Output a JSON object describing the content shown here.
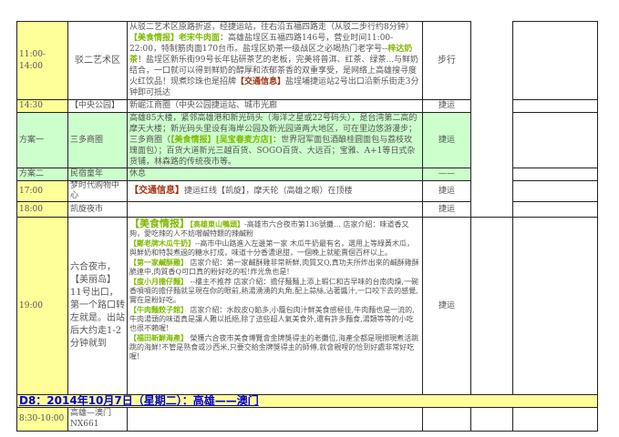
{
  "rows": [
    {
      "time": "11:00-14:00",
      "place": "驳二艺术区",
      "transport": "步行",
      "desc": {
        "t1": "从驳二艺术区原路折返，经捷运站，往右沿五福四路走（从驳二步行约8分钟）",
        "food_tag": "【美食情报】",
        "food_name": "老宋牛肉面",
        "t2": "：高雄盐埕区五福四路146号，营业时间11:00-22:00，特制筋肉面170台币。盐埕区奶茶一级战区之必喝热门老字号--",
        "food_name2": "梓达奶茶",
        "t3": "！盐埕区新乐街99号长年钻研茶艺的老板，完美将普洱、红茶、绿茶...与鲜奶结合，一口就可以得到鲜奶的醇厚和浓郁茶香的双重享受，是网络上高雄搜寻度火红饮品！现煮珍珠也是招牌",
        "traffic_tag": "【交通信息】",
        "t4": "盐埕埔捷运站2号出口沿新乐街走3分钟即可抵达"
      }
    },
    {
      "time": "14:30",
      "place": "【中央公园】",
      "desc": "新崛江商圈（中央公园捷运站、城市光廊",
      "transport": "捷运"
    },
    {
      "time": "方案一",
      "place": "三多商圈",
      "transport": "捷运",
      "desc": {
        "t1": "高雄85大楼，紧邻高雄港和新光码头（海洋之星或22号码头），是台湾第二高的摩天大楼；新光码头里设有海岸公园及新光园道两大地区，可在里边悠游漫步；三多商圈（",
        "food_tag": "【美食情报】",
        "food_name": "[吴宝春麦方店]",
        "t2": "：世界冠军面包酒酿桂圆面包与荔枝玫瑰面包）；百货大道新光三越百货、SOGO百货、大远百；宝雅、A+1等日式杂货铺，林森路的传统夜市等。"
      }
    },
    {
      "time": "方案二",
      "place": "民宿童年",
      "desc": "休息",
      "transport": "——"
    },
    {
      "time": "17:00",
      "place": "梦时代购物中心",
      "traffic_tag": "【交通信息】",
      "desc": "捷运红线【凯旋】，摩天轮（高雄之眼）在顶楼",
      "transport": "捷运"
    },
    {
      "time": "18:00",
      "place": "凯旋夜市",
      "desc": "",
      "transport": "捷运"
    },
    {
      "time": "19:00",
      "place": "六合夜市，【美丽岛】11号出口，第一个路口转左就是。出站后大约走1-2分钟就到",
      "transport": "捷运",
      "food_tag": "【美食情报】",
      "items": [
        {
          "name": "【高雄東山鴨頭】",
          "text": "-高雄市六合夜市第136號攤… 店家介紹：味道香又夠，愛吃辣的人不妨嚐鹹特餵的辣鹹粉"
        },
        {
          "name": "【鄭老牌木瓜牛奶】",
          "text": "--高市中山路進入左邊第一家 木瓜牛奶最有名，選用上等綠黃木瓜，與鮮奶和特製煮過的糖水打成，味道十分香濃退甜，一個晚上就能賣個百杯以上。"
        },
        {
          "name": "【第一家鹹酥雞】",
          "text": " 店家介紹：第一家鹹酥雞非常新鮮,肉質又Q,真功夫所炸出來的鹹酥雞酥脆連中,肉質香Q可口真的粉好吃的啦!炸光魚也是!"
        },
        {
          "name": "【度小月擔仔麵】",
          "text": " --樓主不推荐 店家介紹：擔仔麵麵上添上蝦仁和古早味的台南肉燥,一碗香噴噴的擔仔麵就呈現在你的眼前,熱湯湧湧的丸角,配上蒜絲,沾著醬汁,一口咬下去的感覺,實在是粉好吃。"
        },
        {
          "name": "【牛肉麵餃子館】",
          "text": " 店家介紹：水餃皮Q餡多,小籠包肉汁鮮美食感極佳,牛肉麵也是一流的,牛肉湯頭的味道真是讓人難以抵絕,除了這些超人氣美食外,還有許多麵食,湯類等等的小吃也很不賴喔!"
        },
        {
          "name": "【福田新鮮海產】",
          "text": " 榮獲六合夜市美食博覽會金牌獎得主的老攤位,海產全都是現撈現煮活跳跳的海鮮!不管是熟食或沙西米,只要交給金牌獎得主的師傅,就會親哩的恰到好處非常好吃喔!"
        }
      ]
    },
    {
      "day_header": "D8：2014年10月7日（星期二）：高雄——澳门"
    },
    {
      "time": "8:30-10:00",
      "place": "高雄—澳门",
      "flight": "NX661"
    }
  ],
  "colors": {
    "time_bg": "#ffff99",
    "plan_bg": "#ccffcc",
    "food": "#7fba00",
    "traffic": "#a0300a",
    "day_header": "#0000cc"
  }
}
